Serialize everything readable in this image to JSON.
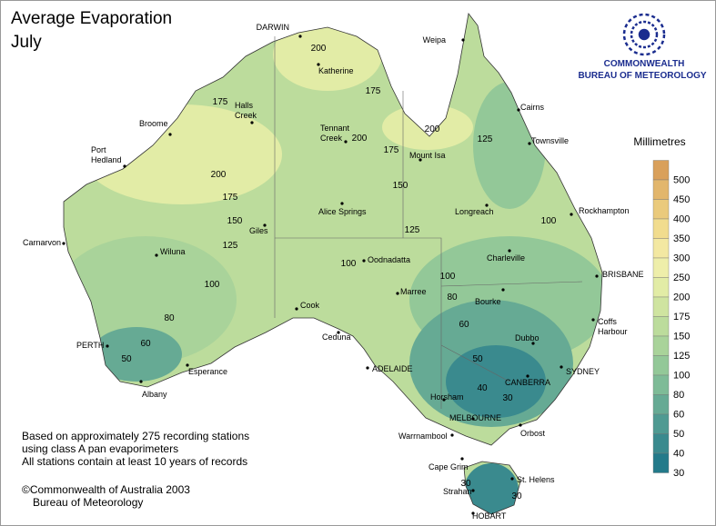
{
  "title": "Average Evaporation",
  "subtitle": "July",
  "logo": {
    "line1": "COMMONWEALTH",
    "line2": "BUREAU OF METEOROLOGY"
  },
  "legend": {
    "title": "Millimetres",
    "items": [
      {
        "value": 500,
        "color": "#d9a05b"
      },
      {
        "value": 450,
        "color": "#e2b66c"
      },
      {
        "value": 400,
        "color": "#eaca7c"
      },
      {
        "value": 350,
        "color": "#f1dc8e"
      },
      {
        "value": 300,
        "color": "#f3e8a2"
      },
      {
        "value": 250,
        "color": "#eeeeaa"
      },
      {
        "value": 200,
        "color": "#e2eca6"
      },
      {
        "value": 175,
        "color": "#cfe4a0"
      },
      {
        "value": 150,
        "color": "#bcdc9c"
      },
      {
        "value": 125,
        "color": "#a9d39a"
      },
      {
        "value": 100,
        "color": "#93c898"
      },
      {
        "value": 80,
        "color": "#7ebb97"
      },
      {
        "value": 60,
        "color": "#66aa94"
      },
      {
        "value": 50,
        "color": "#4f9a92"
      },
      {
        "value": 40,
        "color": "#3a8a8e"
      },
      {
        "value": 30,
        "color": "#237a8a"
      }
    ]
  },
  "cities": [
    [
      "DARWIN"
    ],
    [
      "Weipa"
    ],
    [
      "Katherine"
    ],
    [
      "Cairns"
    ],
    [
      "Halls",
      "Creek"
    ],
    [
      "Broome"
    ],
    [
      "Tennant",
      "Creek"
    ],
    [
      "Townsville"
    ],
    [
      "Port",
      "Hedland"
    ],
    [
      "Mount Isa"
    ],
    [
      "Rockhampton"
    ],
    [
      "Longreach"
    ],
    [
      "Alice Springs"
    ],
    [
      "Giles"
    ],
    [
      "Carnarvon"
    ],
    [
      "Wiluna"
    ],
    [
      "Oodnadatta"
    ],
    [
      "Charleville"
    ],
    [
      "Marree"
    ],
    [
      "BRISBANE"
    ],
    [
      "Bourke"
    ],
    [
      "Cook"
    ],
    [
      "Coffs",
      "Harbour"
    ],
    [
      "Ceduna"
    ],
    [
      "PERTH"
    ],
    [
      "Dubbo"
    ],
    [
      "ADELAIDE"
    ],
    [
      "Esperance"
    ],
    [
      "SYDNEY"
    ],
    [
      "CANBERRA"
    ],
    [
      "Albany"
    ],
    [
      "Horsham"
    ],
    [
      "MELBOURNE"
    ],
    [
      "Warrnambool"
    ],
    [
      "Orbost"
    ],
    [
      "Cape Grim"
    ],
    [
      "St. Helens"
    ],
    [
      "Strahan"
    ],
    [
      "HOBART"
    ]
  ],
  "contour_labels": [
    200,
    175,
    175,
    200,
    200,
    175,
    125,
    200,
    175,
    150,
    150,
    125,
    100,
    125,
    100,
    100,
    100,
    80,
    80,
    60,
    60,
    50,
    50,
    40,
    30,
    30,
    30
  ],
  "notes": [
    "Based on approximately 275 recording stations",
    "using class A pan evaporimeters",
    "All stations contain at least 10 years of records"
  ],
  "copyright": [
    "©Commonwealth of Australia 2003",
    "Bureau of Meteorology"
  ]
}
